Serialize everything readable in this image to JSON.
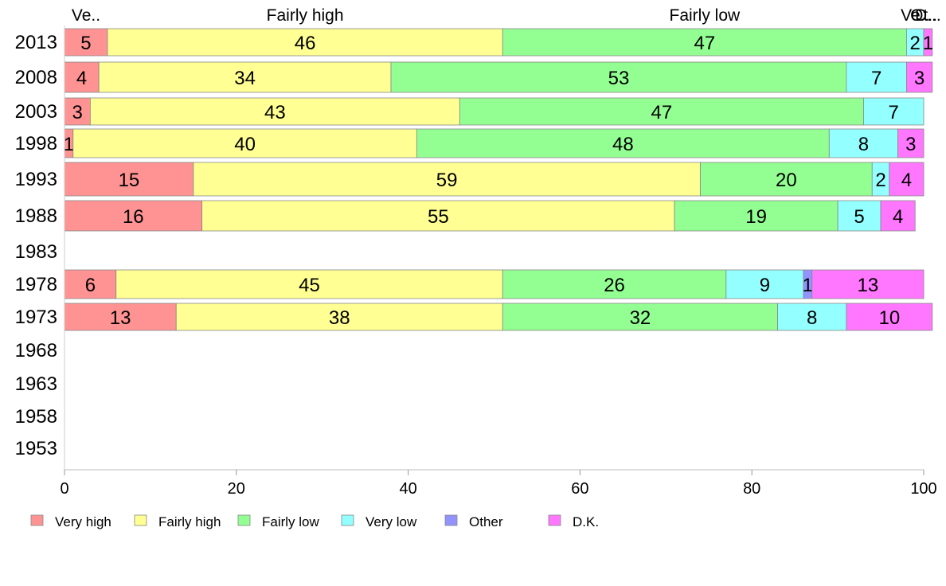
{
  "chart_data": {
    "type": "bar",
    "orientation": "horizontal",
    "stacked": true,
    "categories": [
      "2013",
      "2008",
      "2003",
      "1998",
      "1993",
      "1988",
      "1983",
      "1978",
      "1973",
      "1968",
      "1963",
      "1958",
      "1953"
    ],
    "series": [
      {
        "name": "Very high",
        "color": "#ff9393",
        "values": [
          5,
          4,
          3,
          1,
          15,
          16,
          null,
          6,
          13,
          null,
          null,
          null,
          null
        ]
      },
      {
        "name": "Fairly high",
        "color": "#ffff93",
        "values": [
          46,
          34,
          43,
          40,
          59,
          55,
          null,
          45,
          38,
          null,
          null,
          null,
          null
        ]
      },
      {
        "name": "Fairly low",
        "color": "#93ff93",
        "values": [
          47,
          53,
          47,
          48,
          20,
          19,
          null,
          26,
          32,
          null,
          null,
          null,
          null
        ]
      },
      {
        "name": "Very low",
        "color": "#93ffff",
        "values": [
          2,
          7,
          7,
          8,
          2,
          5,
          null,
          9,
          8,
          null,
          null,
          null,
          null
        ]
      },
      {
        "name": "Other",
        "color": "#9393ff",
        "values": [
          0,
          0,
          0,
          0,
          0,
          0,
          null,
          1,
          0,
          null,
          null,
          null,
          null
        ]
      },
      {
        "name": "D.K.",
        "color": "#ff77ff",
        "values": [
          1,
          3,
          0,
          3,
          4,
          4,
          null,
          13,
          10,
          null,
          null,
          null,
          null
        ]
      }
    ],
    "top_labels": [
      {
        "text": "Ve..",
        "series": 0
      },
      {
        "text": "Fairly high",
        "series": 1
      },
      {
        "text": "Fairly low",
        "series": 2
      },
      {
        "text": "Ve..",
        "series": 3
      },
      {
        "text": "Ot..",
        "series": 4
      },
      {
        "text": "D...",
        "series": 5
      }
    ],
    "xlim": [
      0,
      100
    ],
    "xticks": [
      0,
      20,
      40,
      60,
      80,
      100
    ],
    "legend_position": "bottom-left",
    "grid": false
  }
}
